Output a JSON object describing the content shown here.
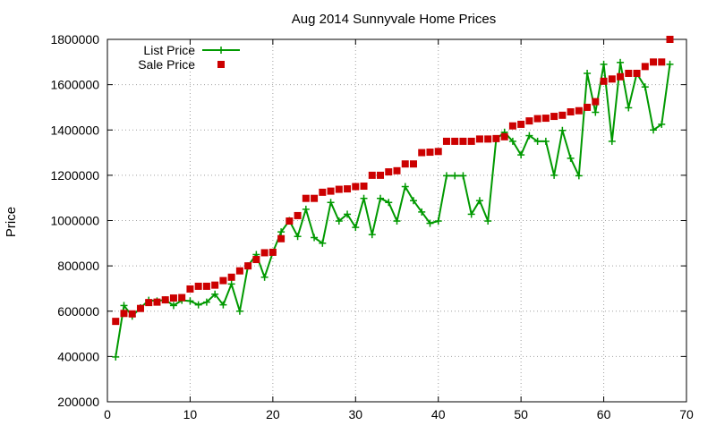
{
  "chart_data": {
    "type": "line",
    "title": "Aug 2014 Sunnyvale Home Prices",
    "xlabel": "",
    "ylabel": "Price",
    "xlim": [
      0,
      70
    ],
    "ylim": [
      200000,
      1800000
    ],
    "xticks": [
      "0",
      "10",
      "20",
      "30",
      "40",
      "50",
      "60",
      "70"
    ],
    "yticks": [
      "200000",
      "400000",
      "600000",
      "800000",
      "1000000",
      "1200000",
      "1400000",
      "1600000",
      "1800000"
    ],
    "grid": true,
    "legend_position": "top-left",
    "series": [
      {
        "name": "List Price",
        "style": "line-plus",
        "color": "#009900",
        "x": [
          1,
          2,
          3,
          4,
          5,
          6,
          7,
          8,
          9,
          10,
          11,
          12,
          13,
          14,
          15,
          16,
          17,
          18,
          19,
          20,
          21,
          22,
          23,
          24,
          25,
          26,
          27,
          28,
          29,
          30,
          31,
          32,
          33,
          34,
          35,
          36,
          37,
          38,
          39,
          40,
          41,
          42,
          43,
          44,
          45,
          46,
          47,
          48,
          49,
          50,
          51,
          52,
          53,
          54,
          55,
          56,
          57,
          58,
          59,
          60,
          61,
          62,
          63,
          64,
          65,
          66,
          67,
          68
        ],
        "y": [
          398000,
          625000,
          578000,
          615000,
          648000,
          645000,
          650000,
          625000,
          648000,
          645000,
          628000,
          640000,
          675000,
          628000,
          720000,
          600000,
          800000,
          850000,
          750000,
          860000,
          950000,
          1000000,
          930000,
          1050000,
          925000,
          900000,
          1080000,
          998000,
          1028000,
          970000,
          1098000,
          938000,
          1098000,
          1080000,
          998000,
          1150000,
          1088000,
          1038000,
          988000,
          998000,
          1198000,
          1198000,
          1198000,
          1028000,
          1088000,
          998000,
          1360000,
          1390000,
          1350000,
          1290000,
          1375000,
          1350000,
          1350000,
          1200000,
          1398000,
          1275000,
          1198000,
          1650000,
          1478000,
          1690000,
          1350000,
          1698000,
          1498000,
          1650000,
          1590000,
          1400000,
          1425000,
          1690000
        ]
      },
      {
        "name": "Sale Price",
        "style": "square",
        "color": "#cc0000",
        "x": [
          1,
          2,
          3,
          4,
          5,
          6,
          7,
          8,
          9,
          10,
          11,
          12,
          13,
          14,
          15,
          16,
          17,
          18,
          19,
          20,
          21,
          22,
          23,
          24,
          25,
          26,
          27,
          28,
          29,
          30,
          31,
          32,
          33,
          34,
          35,
          36,
          37,
          38,
          39,
          40,
          41,
          42,
          43,
          44,
          45,
          46,
          47,
          48,
          49,
          50,
          51,
          52,
          53,
          54,
          55,
          56,
          57,
          58,
          59,
          60,
          61,
          62,
          63,
          64,
          65,
          66,
          67,
          68
        ],
        "y": [
          555000,
          590000,
          588000,
          612000,
          638000,
          640000,
          650000,
          658000,
          660000,
          698000,
          710000,
          710000,
          715000,
          735000,
          750000,
          778000,
          800000,
          828000,
          858000,
          860000,
          920000,
          998000,
          1022000,
          1098000,
          1098000,
          1125000,
          1130000,
          1138000,
          1140000,
          1150000,
          1152000,
          1200000,
          1200000,
          1215000,
          1220000,
          1250000,
          1250000,
          1300000,
          1302000,
          1305000,
          1350000,
          1350000,
          1350000,
          1350000,
          1360000,
          1360000,
          1362000,
          1370000,
          1418000,
          1425000,
          1440000,
          1450000,
          1452000,
          1460000,
          1465000,
          1480000,
          1485000,
          1500000,
          1525000,
          1615000,
          1625000,
          1635000,
          1650000,
          1650000,
          1680000,
          1700000,
          1700000,
          1800000
        ]
      }
    ]
  }
}
